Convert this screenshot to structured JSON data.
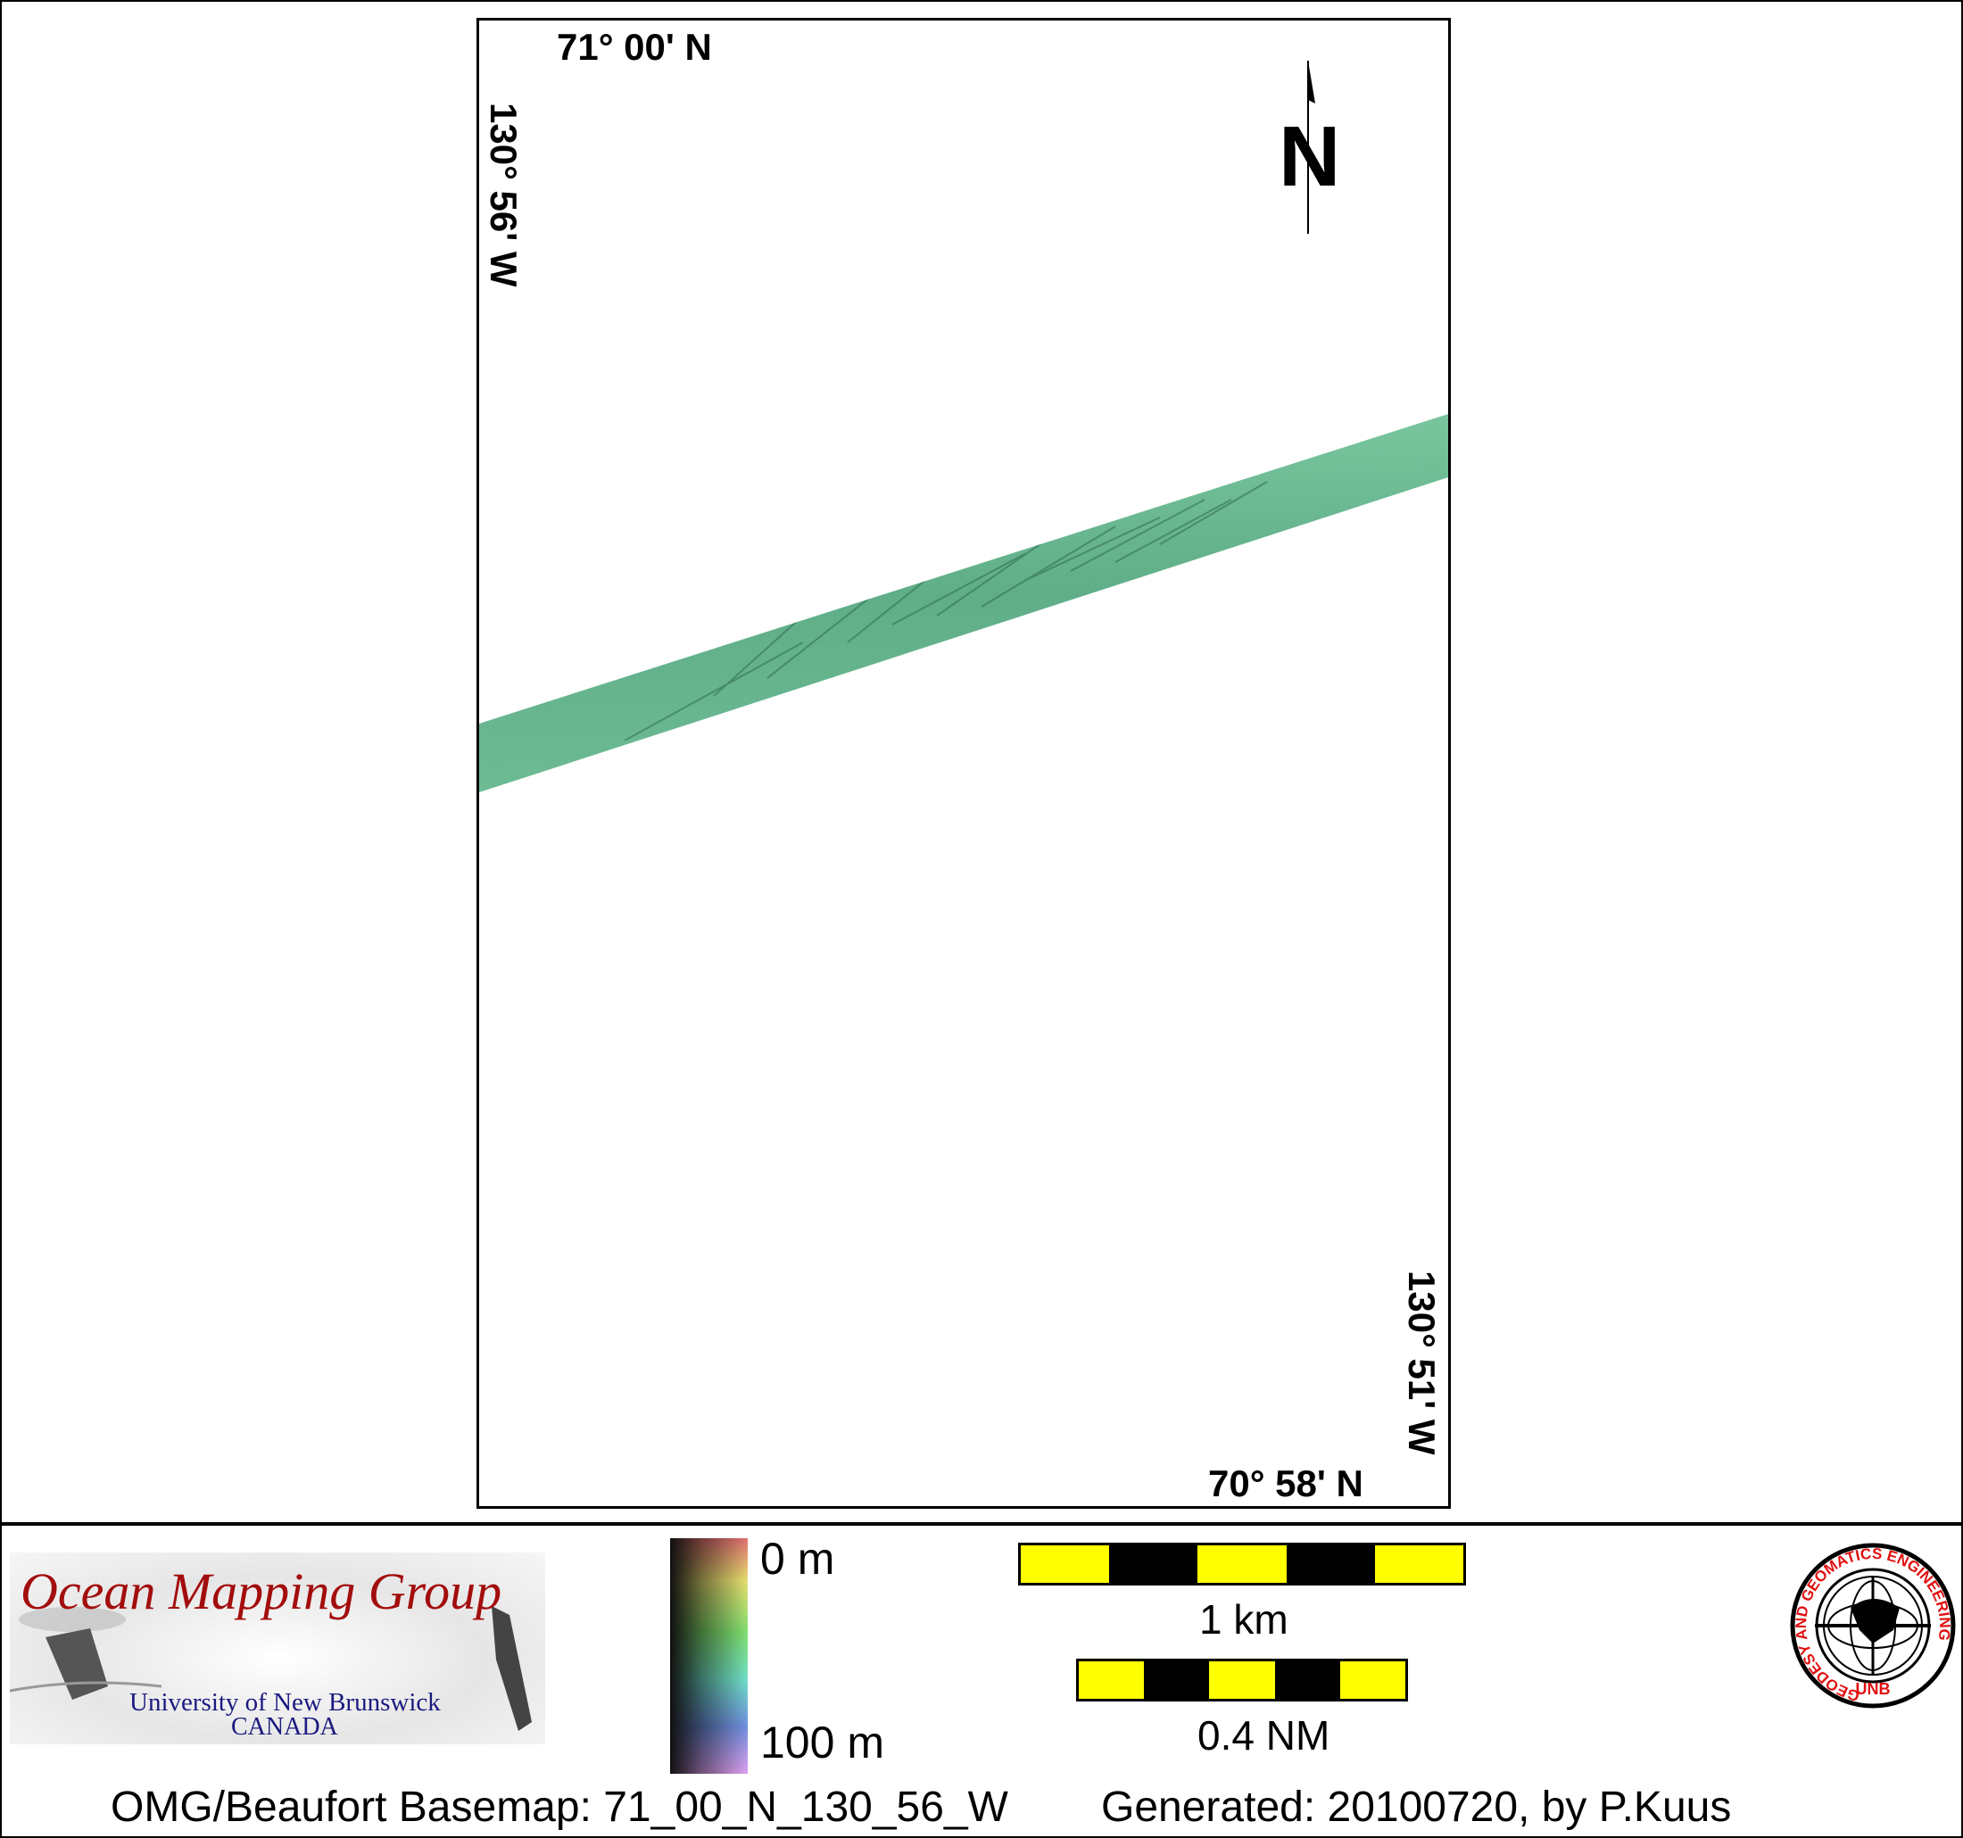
{
  "map": {
    "top_lat_label": "71° 00' N",
    "left_lon_label": "130° 56' W",
    "bottom_lat_label": "70° 58' N",
    "right_lon_label": "130° 51' W",
    "north_arrow_label": "N",
    "swath_color": "#5fb08a"
  },
  "legend": {
    "logo": {
      "title": "Ocean Mapping Group",
      "subtitle": "University of New Brunswick",
      "country": "CANADA"
    },
    "depth_scale": {
      "top_label": "0 m",
      "bottom_label": "100 m"
    },
    "scale_bars": [
      {
        "label": "1 km",
        "segments": [
          "yellow",
          "black",
          "yellow",
          "black",
          "yellow"
        ]
      },
      {
        "label": "0.4 NM",
        "segments": [
          "yellow",
          "black",
          "yellow",
          "black",
          "yellow"
        ]
      }
    ],
    "unb_seal": {
      "ring_text": "GEODESY AND GEOMATICS ENGINEERING",
      "bottom_text": "UNB"
    }
  },
  "footer": {
    "basemap": "OMG/Beaufort Basemap: 71_00_N_130_56_W",
    "generated": "Generated: 20100720, by P.Kuus"
  }
}
